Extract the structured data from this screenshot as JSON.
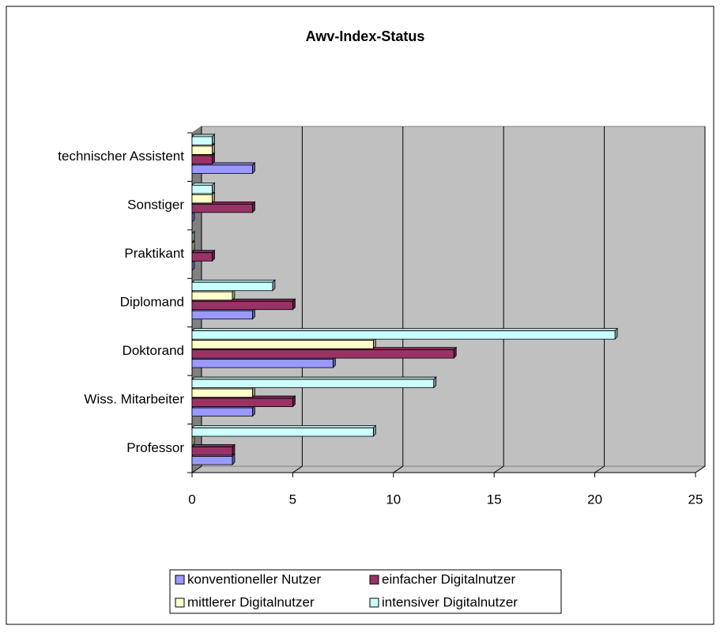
{
  "chart_data": {
    "type": "bar",
    "orientation": "horizontal",
    "title": "Awv-Index-Status",
    "categories": [
      "Professor",
      "Wiss. Mitarbeiter",
      "Doktorand",
      "Diplomand",
      "Praktikant",
      "Sonstiger",
      "technischer Assistent"
    ],
    "series": [
      {
        "name": "konventioneller Nutzer",
        "color": "#9999ff",
        "values": [
          2,
          3,
          7,
          3,
          0,
          0,
          3
        ]
      },
      {
        "name": "einfacher Digitalnutzer",
        "color": "#993366",
        "values": [
          2,
          5,
          13,
          5,
          1,
          3,
          1
        ]
      },
      {
        "name": "mittlerer Digitalnutzer",
        "color": "#ffffcc",
        "values": [
          0,
          3,
          9,
          2,
          0,
          1,
          1
        ]
      },
      {
        "name": "intensiver Digitalnutzer",
        "color": "#ccffff",
        "values": [
          9,
          12,
          21,
          4,
          0,
          1,
          1
        ]
      }
    ],
    "xlim": [
      0,
      25
    ],
    "xticks": [
      0,
      5,
      10,
      15,
      20,
      25
    ],
    "grid": true,
    "legend": "bottom",
    "wall_color": "#c0c0c0"
  }
}
